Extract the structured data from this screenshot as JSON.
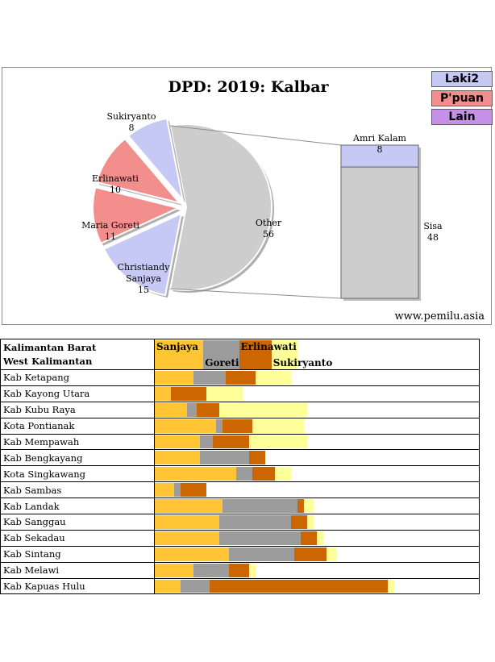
{
  "chart_data": [
    {
      "type": "pie",
      "title": "DPD: 2019: Kalbar",
      "slices": [
        {
          "label": "Christiandy Sanjaya",
          "value": 15,
          "color": "#c6c9f4"
        },
        {
          "label": "Maria Goreti",
          "value": 11,
          "color": "#f28e8c"
        },
        {
          "label": "Erlinawati",
          "value": 10,
          "color": "#f28e8c"
        },
        {
          "label": "Sukiryanto",
          "value": 8,
          "color": "#c6c9f4"
        },
        {
          "label": "Other",
          "value": 56,
          "color": "#cdcdcd"
        }
      ],
      "breakdown": [
        {
          "label": "Amri Kalam",
          "value": 8,
          "color": "#c6c9f4"
        },
        {
          "label": "Sisa",
          "value": 48,
          "color": "#cdcdcd"
        }
      ],
      "legend": [
        {
          "label": "Laki2",
          "color": "#c6c9f4"
        },
        {
          "label": "P'puan",
          "color": "#f28e8c"
        },
        {
          "label": "Lain",
          "color": "#c490e8"
        }
      ],
      "legend_position": "top-right"
    },
    {
      "type": "bar",
      "stacked": true,
      "header": {
        "line1": "Kalimantan Barat",
        "line2": "West Kalimantan"
      },
      "series": [
        {
          "name": "Sanjaya",
          "color": "#ffc535"
        },
        {
          "name": "Goreti",
          "color": "#9c9c9c"
        },
        {
          "name": "Erlinawati",
          "color": "#cc6600"
        },
        {
          "name": "Sukiryanto",
          "color": "#ffff9a"
        }
      ],
      "categories": [
        "Kab Ketapang",
        "Kab Kayong Utara",
        "Kab Kubu Raya",
        "Kota Pontianak",
        "Kab Mempawah",
        "Kab Bengkayang",
        "Kota Singkawang",
        "Kab Sambas",
        "Kab Landak",
        "Kab Sanggau",
        "Kab Sekadau",
        "Kab Sintang",
        "Kab Melawi",
        "Kab Kapuas Hulu"
      ],
      "values": [
        [
          12,
          10,
          9,
          11
        ],
        [
          5,
          0,
          11,
          11
        ],
        [
          10,
          3,
          7,
          27
        ],
        [
          19,
          2,
          9,
          16
        ],
        [
          14,
          4,
          11,
          18
        ],
        [
          14,
          15,
          5,
          0
        ],
        [
          25,
          5,
          7,
          5
        ],
        [
          6,
          2,
          8,
          0
        ],
        [
          21,
          23,
          2,
          3
        ],
        [
          20,
          22,
          5,
          2
        ],
        [
          20,
          25,
          5,
          2
        ],
        [
          23,
          20,
          10,
          3
        ],
        [
          12,
          11,
          6,
          2
        ],
        [
          8,
          9,
          55,
          2
        ]
      ],
      "header_values": [
        15,
        11,
        10,
        8
      ],
      "xlim": [
        0,
        100
      ]
    }
  ],
  "website": "www.pemilu.asia"
}
